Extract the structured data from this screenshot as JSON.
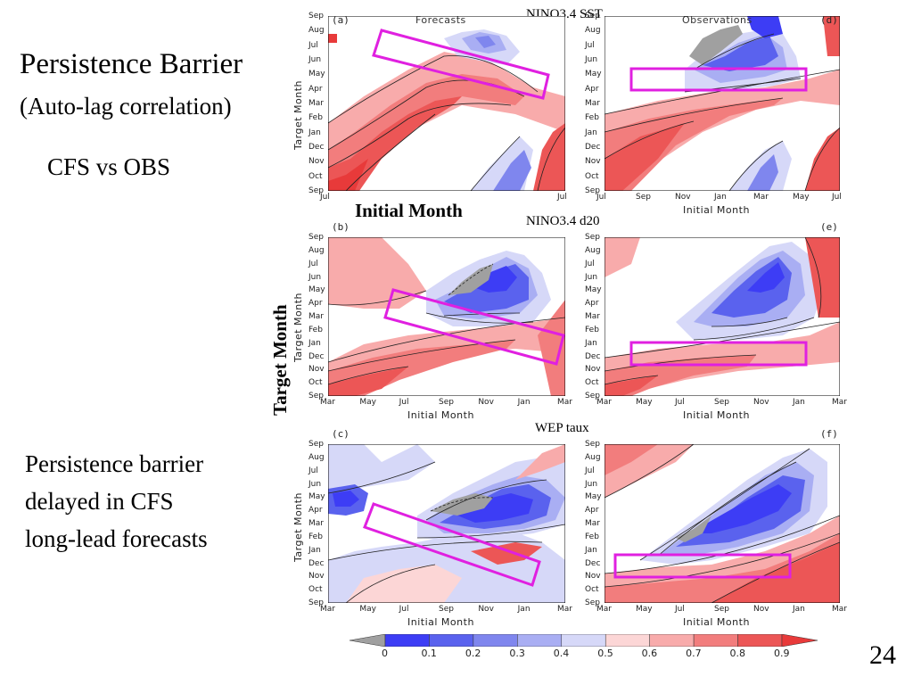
{
  "slide": {
    "title": "Persistence Barrier",
    "subtitle": "(Auto-lag correlation)",
    "comparison": "CFS vs OBS",
    "note_line1": "Persistence barrier",
    "note_line2": "delayed in CFS",
    "note_line3": "long-lead forecasts",
    "initial_month_big": "Initial Month",
    "target_month_big": "Target Month",
    "page_number": "24"
  },
  "sections": {
    "sst": "NINO3.4 SST",
    "d20": "NINO3.4 d20",
    "taux": "WEP taux"
  },
  "panels": {
    "a": {
      "tag": "(a)",
      "title": "Forecasts"
    },
    "b": {
      "tag": "(b)",
      "title": ""
    },
    "c": {
      "tag": "(c)",
      "title": ""
    },
    "d": {
      "tag": "(d)",
      "title": "Observations"
    },
    "e": {
      "tag": "(e)",
      "title": ""
    },
    "f": {
      "tag": "(f)",
      "title": ""
    }
  },
  "axes": {
    "ylabel": "Target Month",
    "xlabel": "Initial Month",
    "y_ticks": [
      "Sep",
      "Aug",
      "Jul",
      "Jun",
      "May",
      "Apr",
      "Mar",
      "Feb",
      "Jan",
      "Dec",
      "Nov",
      "Oct",
      "Sep"
    ],
    "x_ticks_top_left": [
      "Jul",
      "",
      "",
      "",
      "",
      "",
      "Jul"
    ],
    "x_ticks_top_right": [
      "Jul",
      "Sep",
      "Nov",
      "Jan",
      "Mar",
      "May",
      "Jul"
    ],
    "x_ticks_mar": [
      "Mar",
      "May",
      "Jul",
      "Sep",
      "Nov",
      "Jan",
      "Mar"
    ]
  },
  "colorbar": {
    "labels": [
      "0",
      "0.1",
      "0.2",
      "0.3",
      "0.4",
      "0.5",
      "0.6",
      "0.7",
      "0.8",
      "0.9"
    ],
    "colors": [
      "#a0a0a0",
      "#3d3df5",
      "#5a62ee",
      "#7f86ee",
      "#a9aef3",
      "#d6d8f8",
      "#fcd6d6",
      "#f8abab",
      "#f27d7d",
      "#ec5656",
      "#e83a3a"
    ]
  }
}
